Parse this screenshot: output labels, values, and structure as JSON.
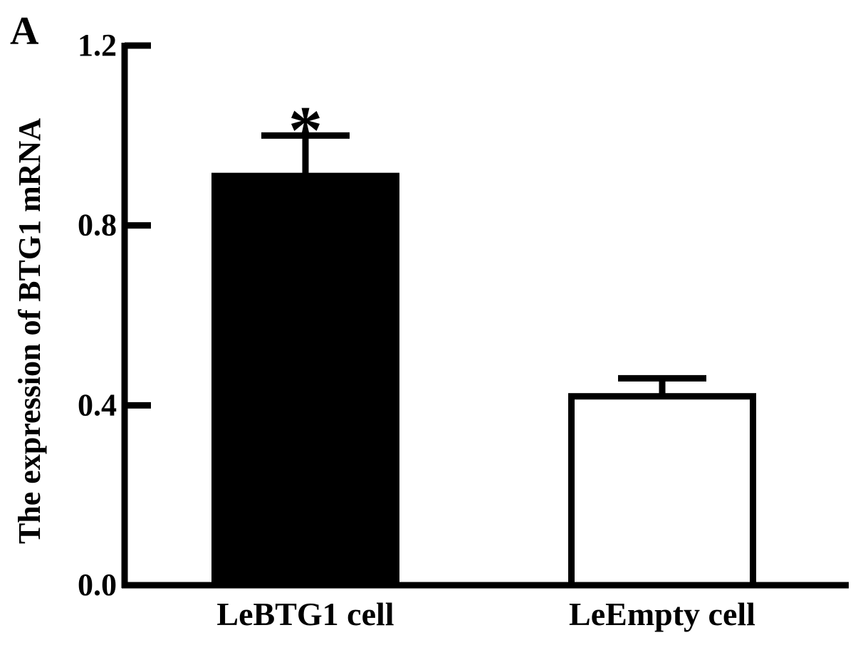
{
  "panel_label": "A",
  "chart_data": {
    "type": "bar",
    "categories": [
      "LeBTG1 cell",
      "LeEmpty cell"
    ],
    "values": [
      0.91,
      0.42
    ],
    "errors": [
      0.09,
      0.04
    ],
    "bar_fills": [
      "#000000",
      "#ffffff"
    ],
    "significance": [
      "*",
      ""
    ],
    "ylabel": "The expression of BTG1 mRNA",
    "xlabel": "",
    "ylim": [
      0,
      1.2
    ],
    "yticks": [
      0.0,
      0.4,
      0.8,
      1.2
    ],
    "ytick_labels": [
      "0.0",
      "0.4",
      "0.8",
      "1.2"
    ],
    "grid": false,
    "legend": "none"
  }
}
